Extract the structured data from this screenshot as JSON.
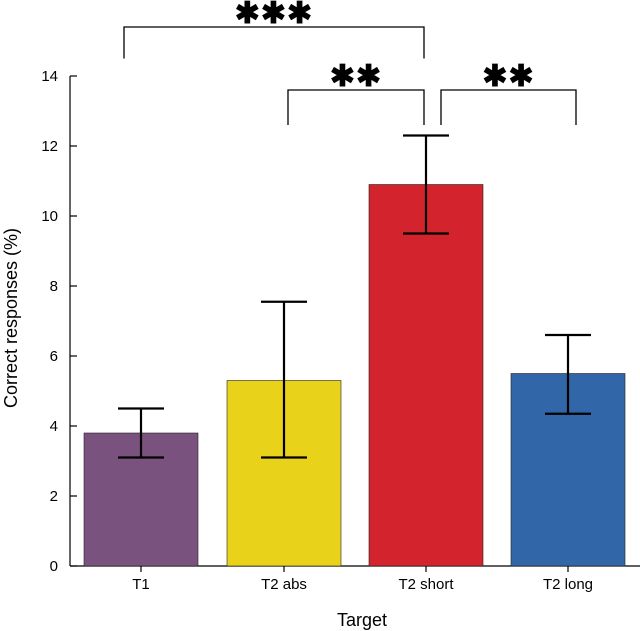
{
  "chart_data": {
    "type": "bar",
    "title": "",
    "xlabel": "Target",
    "ylabel": "Correct responses (%)",
    "ylim": [
      0,
      14
    ],
    "yticks": [
      0,
      2,
      4,
      6,
      8,
      10,
      12,
      14
    ],
    "categories": [
      "T1",
      "T2 abs",
      "T2 short",
      "T2 long"
    ],
    "values": [
      3.8,
      5.3,
      10.9,
      5.5
    ],
    "error_low": [
      3.1,
      3.1,
      9.5,
      4.35
    ],
    "error_high": [
      4.5,
      7.55,
      12.3,
      6.6
    ],
    "colors": [
      "#7a527e",
      "#e8d31a",
      "#d3232c",
      "#3166a8"
    ],
    "grid": false,
    "significance": [
      {
        "from": 0,
        "to": 2,
        "label": "✱✱✱",
        "height": 15.4
      },
      {
        "from": 1,
        "to": 2,
        "label": "✱✱",
        "height": 13.6
      },
      {
        "from": 2,
        "to": 3,
        "label": "✱✱",
        "height": 13.6
      }
    ]
  }
}
